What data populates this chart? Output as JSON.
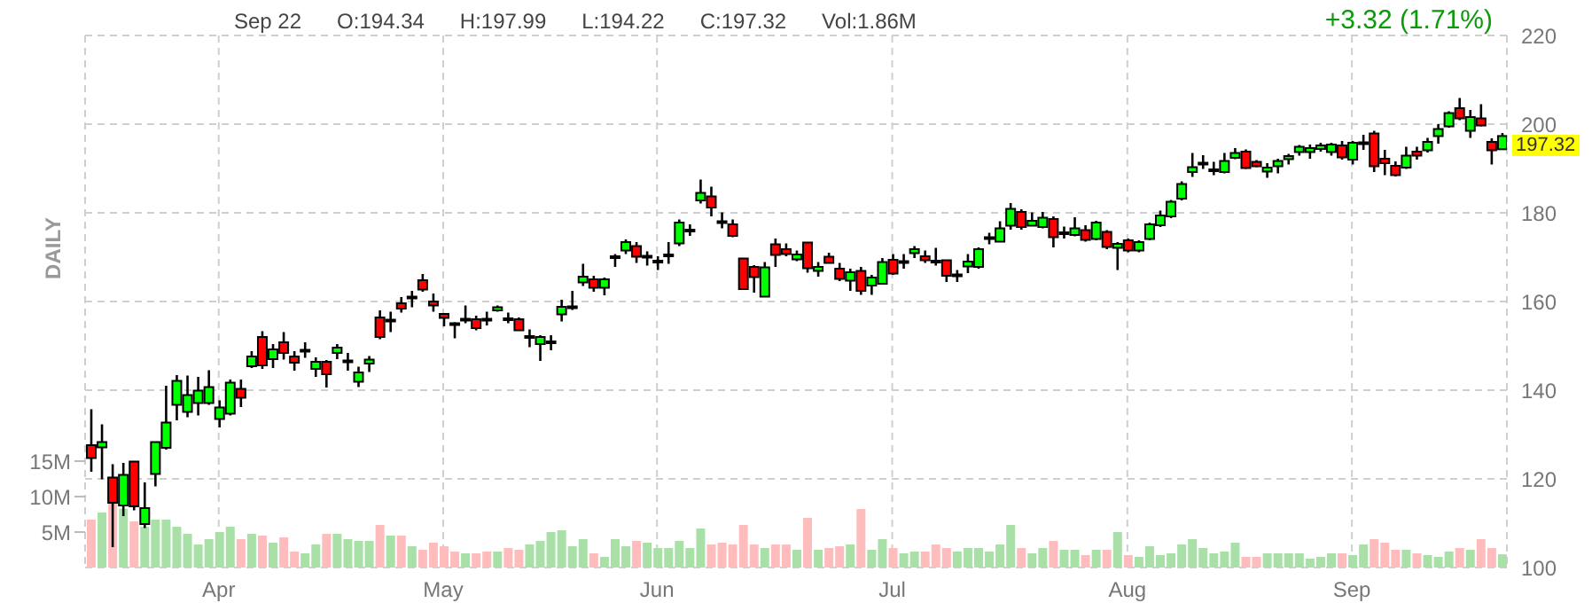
{
  "chart_data": {
    "type": "candlestick",
    "categories": [
      null,
      null,
      null,
      null,
      null,
      null,
      null,
      null,
      null,
      null,
      null,
      null,
      "Apr",
      null,
      null,
      null,
      null,
      null,
      null,
      null,
      null,
      null,
      null,
      null,
      null,
      null,
      null,
      null,
      null,
      null,
      null,
      null,
      null,
      "May",
      null,
      null,
      null,
      null,
      null,
      null,
      null,
      null,
      null,
      null,
      null,
      null,
      null,
      null,
      null,
      null,
      null,
      null,
      null,
      "Jun",
      null,
      null,
      null,
      null,
      null,
      null,
      null,
      null,
      null,
      null,
      null,
      null,
      null,
      null,
      null,
      null,
      null,
      null,
      null,
      null,
      null,
      "Jul",
      null,
      null,
      null,
      null,
      null,
      null,
      null,
      null,
      null,
      null,
      null,
      null,
      null,
      null,
      null,
      null,
      null,
      null,
      null,
      null,
      null,
      "Aug",
      null,
      null,
      null,
      null,
      null,
      null,
      null,
      null,
      null,
      null,
      null,
      null,
      null,
      null,
      null,
      null,
      null,
      null,
      null,
      null,
      "Sep",
      null,
      null,
      null,
      null,
      null,
      null,
      null,
      null,
      null,
      null,
      null,
      null,
      null,
      null
    ],
    "ohlc": [
      [
        127.6,
        135.7,
        121.6,
        124.7
      ],
      [
        127.1,
        132.3,
        119.9,
        128.3
      ],
      [
        120.3,
        123.3,
        104.6,
        114.6
      ],
      [
        114.0,
        123.6,
        111.6,
        120.9
      ],
      [
        123.9,
        124.0,
        112.9,
        113.8
      ],
      [
        109.8,
        119.2,
        108.9,
        113.4
      ],
      [
        121.1,
        128.3,
        118.3,
        128.3
      ],
      [
        127.0,
        141.0,
        126.6,
        132.7
      ],
      [
        136.7,
        143.4,
        133.2,
        142.1
      ],
      [
        135.1,
        143.3,
        133.9,
        138.9
      ],
      [
        137.1,
        143.0,
        134.3,
        139.9
      ],
      [
        137.1,
        144.5,
        136.7,
        140.7
      ],
      [
        133.5,
        137.7,
        131.6,
        136.1
      ],
      [
        134.7,
        142.4,
        134.3,
        141.7
      ],
      [
        140.3,
        142.4,
        136.2,
        138.3
      ],
      [
        145.4,
        148.8,
        145.0,
        147.6
      ],
      [
        152.0,
        153.3,
        144.8,
        145.6
      ],
      [
        147.0,
        150.4,
        145.0,
        149.2
      ],
      [
        150.8,
        153.1,
        146.9,
        148.4
      ],
      [
        147.6,
        148.8,
        144.4,
        146.2
      ],
      [
        149.0,
        150.8,
        147.3,
        149.1
      ],
      [
        144.8,
        147.4,
        143.0,
        146.4
      ],
      [
        146.4,
        146.8,
        140.6,
        143.6
      ],
      [
        148.4,
        150.4,
        147.0,
        149.6
      ],
      [
        146.6,
        148.4,
        144.4,
        146.7
      ],
      [
        141.9,
        145.3,
        140.7,
        144.0
      ],
      [
        146.0,
        147.7,
        144.1,
        146.9
      ],
      [
        156.4,
        158.0,
        151.5,
        152.0
      ],
      [
        155.8,
        157.7,
        153.1,
        155.9
      ],
      [
        159.6,
        161.0,
        157.5,
        158.4
      ],
      [
        161.0,
        162.4,
        158.7,
        161.1
      ],
      [
        164.8,
        166.2,
        162.2,
        162.7
      ],
      [
        160.0,
        161.8,
        157.7,
        159.1
      ],
      [
        157.2,
        157.2,
        154.4,
        156.3
      ],
      [
        155.1,
        155.3,
        151.7,
        155.0
      ],
      [
        156.0,
        159.1,
        155.1,
        156.1
      ],
      [
        156.0,
        156.8,
        153.5,
        154.0
      ],
      [
        156.1,
        157.7,
        154.6,
        156.0
      ],
      [
        158.0,
        159.1,
        157.7,
        158.7
      ],
      [
        156.2,
        157.5,
        155.1,
        156.1
      ],
      [
        156.0,
        156.4,
        153.4,
        153.5
      ],
      [
        152.1,
        153.7,
        149.7,
        152.2
      ],
      [
        150.4,
        152.4,
        146.6,
        152.0
      ],
      [
        150.9,
        152.4,
        149.0,
        151.0
      ],
      [
        157.1,
        160.4,
        155.5,
        158.8
      ],
      [
        158.8,
        162.4,
        158.1,
        158.9
      ],
      [
        164.3,
        168.5,
        163.5,
        165.6
      ],
      [
        165.0,
        165.8,
        162.2,
        163.1
      ],
      [
        163.1,
        165.4,
        161.4,
        165.0
      ],
      [
        170.1,
        170.7,
        167.8,
        170.2
      ],
      [
        171.5,
        174.0,
        170.7,
        173.4
      ],
      [
        172.5,
        173.4,
        168.7,
        170.1
      ],
      [
        170.2,
        171.3,
        168.1,
        170.3
      ],
      [
        169.1,
        170.2,
        167.1,
        169.2
      ],
      [
        170.5,
        173.4,
        168.5,
        170.6
      ],
      [
        173.1,
        178.5,
        172.5,
        177.8
      ],
      [
        176.1,
        177.4,
        174.8,
        176.2
      ],
      [
        182.8,
        187.5,
        182.1,
        184.5
      ],
      [
        183.7,
        185.9,
        179.2,
        181.2
      ],
      [
        178.1,
        180.1,
        176.5,
        178.0
      ],
      [
        177.4,
        178.5,
        174.5,
        174.8
      ],
      [
        169.7,
        169.8,
        162.7,
        162.8
      ],
      [
        167.8,
        168.2,
        162.0,
        165.5
      ],
      [
        161.1,
        168.9,
        161.1,
        167.7
      ],
      [
        172.9,
        174.2,
        167.8,
        170.5
      ],
      [
        171.8,
        173.1,
        170.2,
        170.7
      ],
      [
        169.5,
        171.5,
        169.1,
        170.6
      ],
      [
        173.3,
        173.3,
        166.5,
        167.5
      ],
      [
        166.9,
        168.9,
        165.6,
        167.8
      ],
      [
        170.1,
        171.0,
        168.6,
        168.7
      ],
      [
        167.4,
        168.7,
        164.6,
        165.1
      ],
      [
        164.7,
        167.4,
        162.4,
        166.6
      ],
      [
        166.9,
        167.8,
        161.5,
        162.4
      ],
      [
        163.6,
        166.0,
        161.5,
        165.4
      ],
      [
        164.0,
        169.8,
        163.8,
        168.9
      ],
      [
        169.4,
        170.7,
        166.0,
        166.3
      ],
      [
        169.0,
        170.7,
        167.4,
        169.1
      ],
      [
        170.9,
        172.5,
        169.8,
        171.8
      ],
      [
        170.2,
        171.5,
        168.7,
        169.3
      ],
      [
        169.2,
        172.1,
        168.1,
        169.1
      ],
      [
        169.3,
        169.3,
        164.4,
        165.8
      ],
      [
        166.0,
        167.1,
        164.4,
        166.1
      ],
      [
        167.9,
        170.7,
        166.4,
        169.0
      ],
      [
        167.8,
        172.2,
        167.4,
        171.8
      ],
      [
        174.4,
        175.5,
        172.9,
        174.5
      ],
      [
        173.5,
        178.1,
        173.5,
        176.5
      ],
      [
        177.1,
        182.2,
        176.2,
        180.9
      ],
      [
        180.2,
        180.8,
        176.2,
        176.8
      ],
      [
        177.1,
        180.1,
        177.1,
        178.2
      ],
      [
        176.8,
        180.2,
        176.5,
        178.9
      ],
      [
        178.6,
        179.2,
        172.2,
        174.5
      ],
      [
        175.5,
        176.9,
        174.2,
        175.6
      ],
      [
        175.0,
        179.0,
        174.7,
        176.5
      ],
      [
        176.1,
        177.2,
        173.5,
        173.9
      ],
      [
        174.1,
        178.2,
        173.8,
        177.8
      ],
      [
        175.7,
        176.1,
        171.8,
        172.3
      ],
      [
        172.1,
        173.4,
        167.1,
        173.0
      ],
      [
        173.8,
        174.2,
        171.1,
        171.5
      ],
      [
        171.5,
        173.8,
        171.1,
        173.4
      ],
      [
        174.1,
        177.8,
        173.8,
        177.4
      ],
      [
        177.2,
        180.5,
        176.8,
        179.4
      ],
      [
        179.2,
        182.9,
        178.8,
        182.5
      ],
      [
        183.2,
        187.1,
        182.8,
        186.5
      ],
      [
        189.2,
        193.5,
        188.1,
        190.3
      ],
      [
        191.2,
        193.0,
        189.9,
        191.3
      ],
      [
        189.7,
        191.5,
        188.5,
        189.8
      ],
      [
        189.2,
        193.5,
        188.9,
        191.7
      ],
      [
        192.4,
        194.6,
        192.1,
        193.5
      ],
      [
        193.8,
        194.3,
        189.9,
        190.1
      ],
      [
        191.5,
        191.9,
        190.3,
        190.5
      ],
      [
        189.3,
        191.2,
        187.9,
        190.2
      ],
      [
        190.5,
        192.2,
        188.9,
        191.7
      ],
      [
        192.1,
        193.3,
        190.9,
        192.8
      ],
      [
        193.7,
        195.3,
        192.9,
        194.9
      ],
      [
        193.7,
        195.4,
        192.2,
        194.6
      ],
      [
        194.4,
        195.8,
        193.8,
        195.2
      ],
      [
        193.7,
        195.8,
        192.9,
        195.4
      ],
      [
        195.2,
        196.2,
        192.0,
        192.5
      ],
      [
        192.0,
        196.2,
        190.9,
        195.8
      ],
      [
        195.8,
        197.6,
        194.2,
        195.9
      ],
      [
        197.9,
        198.5,
        189.2,
        190.5
      ],
      [
        192.2,
        194.2,
        188.5,
        191.2
      ],
      [
        190.6,
        191.6,
        188.2,
        188.5
      ],
      [
        190.2,
        194.9,
        189.9,
        192.9
      ],
      [
        193.8,
        194.9,
        192.0,
        192.9
      ],
      [
        194.1,
        196.9,
        193.6,
        196.0
      ],
      [
        197.3,
        200.0,
        195.6,
        198.9
      ],
      [
        199.5,
        202.9,
        199.2,
        202.5
      ],
      [
        203.6,
        205.9,
        200.9,
        201.3
      ],
      [
        198.5,
        203.2,
        196.9,
        201.6
      ],
      [
        201.3,
        204.5,
        199.5,
        199.7
      ],
      [
        196.0,
        196.8,
        190.9,
        194.1
      ],
      [
        194.34,
        197.99,
        194.22,
        197.32
      ]
    ],
    "colors": [
      "#ff0000",
      "#00ff00",
      "#ff0000",
      "#00ff00",
      "#ff0000",
      "#00ff00",
      "#00ff00",
      "#00ff00",
      "#00ff00",
      "#00ff00",
      "#00ff00",
      "#00ff00",
      "#00ff00",
      "#00ff00",
      "#ff0000",
      "#00ff00",
      "#ff0000",
      "#00ff00",
      "#ff0000",
      "#ff0000",
      "#00ff00",
      "#00ff00",
      "#ff0000",
      "#00ff00",
      "#00ff00",
      "#00ff00",
      "#00ff00",
      "#ff0000",
      "#00ff00",
      "#ff0000",
      "#00ff00",
      "#ff0000",
      "#ff0000",
      "#ff0000",
      "#ff0000",
      "#00ff00",
      "#ff0000",
      "#ff0000",
      "#00ff00",
      "#ff0000",
      "#ff0000",
      "#00ff00",
      "#00ff00",
      "#00ff00",
      "#00ff00",
      "#00ff00",
      "#00ff00",
      "#ff0000",
      "#00ff00",
      "#00ff00",
      "#00ff00",
      "#ff0000",
      "#00ff00",
      "#00ff00",
      "#00ff00",
      "#00ff00",
      "#00ff00",
      "#00ff00",
      "#ff0000",
      "#ff0000",
      "#ff0000",
      "#ff0000",
      "#ff0000",
      "#00ff00",
      "#ff0000",
      "#ff0000",
      "#00ff00",
      "#ff0000",
      "#00ff00",
      "#ff0000",
      "#ff0000",
      "#00ff00",
      "#ff0000",
      "#00ff00",
      "#00ff00",
      "#ff0000",
      "#00ff00",
      "#00ff00",
      "#ff0000",
      "#ff0000",
      "#ff0000",
      "#00ff00",
      "#00ff00",
      "#00ff00",
      "#00ff00",
      "#00ff00",
      "#00ff00",
      "#ff0000",
      "#00ff00",
      "#00ff00",
      "#ff0000",
      "#00ff00",
      "#00ff00",
      "#ff0000",
      "#00ff00",
      "#ff0000",
      "#00ff00",
      "#ff0000",
      "#00ff00",
      "#00ff00",
      "#00ff00",
      "#00ff00",
      "#00ff00",
      "#00ff00",
      "#00ff00",
      "#00ff00",
      "#00ff00",
      "#00ff00",
      "#ff0000",
      "#ff0000",
      "#00ff00",
      "#00ff00",
      "#00ff00",
      "#00ff00",
      "#00ff00",
      "#00ff00",
      "#00ff00",
      "#ff0000",
      "#00ff00",
      "#00ff00",
      "#ff0000",
      "#ff0000",
      "#ff0000",
      "#00ff00",
      "#ff0000",
      "#00ff00",
      "#00ff00",
      "#00ff00",
      "#ff0000",
      "#00ff00",
      "#ff0000",
      "#ff0000",
      "#00ff00"
    ],
    "ylim": [
      100,
      220
    ],
    "yticks": [
      100,
      120,
      140,
      160,
      180,
      200,
      220
    ],
    "grid": true,
    "y2lim": [
      0,
      75
    ],
    "y2ticks": [
      {
        "value": 5,
        "label": "5M"
      },
      {
        "value": 10,
        "label": "10M"
      },
      {
        "value": 15,
        "label": "15M"
      }
    ],
    "series": [
      {
        "type": "bar",
        "axis": "y2",
        "values": [
          6.75,
          7.75,
          9.2,
          8.3,
          6.5,
          5.75,
          6.75,
          6.75,
          5.75,
          4.75,
          3.25,
          4.0,
          5.0,
          5.75,
          4.0,
          4.75,
          4.5,
          3.5,
          4.25,
          2.25,
          2.0,
          3.25,
          4.75,
          4.75,
          4.0,
          3.75,
          3.75,
          6.0,
          4.5,
          4.5,
          3.0,
          2.5,
          3.5,
          3.0,
          2.25,
          2.0,
          2.0,
          2.25,
          2.25,
          2.75,
          2.5,
          3.25,
          3.75,
          5.0,
          5.25,
          3.0,
          4.0,
          2.0,
          1.5,
          4.0,
          3.0,
          3.75,
          3.5,
          2.75,
          2.75,
          3.75,
          2.75,
          5.5,
          3.25,
          3.5,
          3.25,
          6.0,
          3.25,
          2.75,
          3.25,
          3.25,
          2.5,
          7.0,
          2.5,
          2.75,
          3.0,
          3.25,
          8.25,
          2.5,
          4.0,
          2.75,
          2.0,
          2.25,
          2.25,
          3.25,
          2.75,
          2.25,
          2.75,
          2.75,
          2.25,
          3.25,
          6.0,
          2.75,
          2.0,
          2.75,
          3.75,
          2.5,
          2.5,
          1.75,
          2.5,
          2.5,
          5.0,
          1.75,
          1.5,
          3.0,
          1.75,
          2.0,
          3.25,
          4.0,
          2.75,
          2.0,
          2.25,
          3.5,
          1.5,
          1.5,
          2.0,
          2.0,
          2.0,
          2.0,
          1.25,
          1.5,
          2.0,
          2.0,
          1.75,
          3.25,
          4.0,
          3.5,
          2.5,
          2.5,
          2.0,
          1.75,
          1.5,
          2.25,
          2.75,
          2.5,
          4.0,
          2.75,
          1.86
        ],
        "colors": [
          "#ffbcbc",
          "#a8e0a8",
          "#ffbcbc",
          "#a8e0a8",
          "#ffbcbc",
          "#a8e0a8",
          "#a8e0a8",
          "#a8e0a8",
          "#a8e0a8",
          "#a8e0a8",
          "#a8e0a8",
          "#a8e0a8",
          "#a8e0a8",
          "#a8e0a8",
          "#ffbcbc",
          "#a8e0a8",
          "#ffbcbc",
          "#a8e0a8",
          "#ffbcbc",
          "#ffbcbc",
          "#a8e0a8",
          "#a8e0a8",
          "#ffbcbc",
          "#a8e0a8",
          "#a8e0a8",
          "#a8e0a8",
          "#a8e0a8",
          "#ffbcbc",
          "#a8e0a8",
          "#ffbcbc",
          "#a8e0a8",
          "#ffbcbc",
          "#ffbcbc",
          "#ffbcbc",
          "#ffbcbc",
          "#a8e0a8",
          "#ffbcbc",
          "#ffbcbc",
          "#a8e0a8",
          "#ffbcbc",
          "#ffbcbc",
          "#a8e0a8",
          "#a8e0a8",
          "#a8e0a8",
          "#a8e0a8",
          "#a8e0a8",
          "#a8e0a8",
          "#ffbcbc",
          "#a8e0a8",
          "#a8e0a8",
          "#a8e0a8",
          "#ffbcbc",
          "#a8e0a8",
          "#a8e0a8",
          "#a8e0a8",
          "#a8e0a8",
          "#a8e0a8",
          "#a8e0a8",
          "#ffbcbc",
          "#ffbcbc",
          "#ffbcbc",
          "#ffbcbc",
          "#ffbcbc",
          "#a8e0a8",
          "#ffbcbc",
          "#ffbcbc",
          "#a8e0a8",
          "#ffbcbc",
          "#a8e0a8",
          "#ffbcbc",
          "#ffbcbc",
          "#a8e0a8",
          "#ffbcbc",
          "#a8e0a8",
          "#a8e0a8",
          "#ffbcbc",
          "#a8e0a8",
          "#a8e0a8",
          "#ffbcbc",
          "#ffbcbc",
          "#ffbcbc",
          "#a8e0a8",
          "#a8e0a8",
          "#a8e0a8",
          "#a8e0a8",
          "#a8e0a8",
          "#a8e0a8",
          "#ffbcbc",
          "#a8e0a8",
          "#a8e0a8",
          "#ffbcbc",
          "#a8e0a8",
          "#a8e0a8",
          "#ffbcbc",
          "#a8e0a8",
          "#ffbcbc",
          "#a8e0a8",
          "#ffbcbc",
          "#a8e0a8",
          "#a8e0a8",
          "#a8e0a8",
          "#a8e0a8",
          "#a8e0a8",
          "#a8e0a8",
          "#a8e0a8",
          "#a8e0a8",
          "#a8e0a8",
          "#a8e0a8",
          "#ffbcbc",
          "#ffbcbc",
          "#a8e0a8",
          "#a8e0a8",
          "#a8e0a8",
          "#a8e0a8",
          "#a8e0a8",
          "#a8e0a8",
          "#a8e0a8",
          "#ffbcbc",
          "#a8e0a8",
          "#a8e0a8",
          "#ffbcbc",
          "#ffbcbc",
          "#ffbcbc",
          "#a8e0a8",
          "#ffbcbc",
          "#a8e0a8",
          "#a8e0a8",
          "#a8e0a8",
          "#ffbcbc",
          "#a8e0a8",
          "#ffbcbc",
          "#ffbcbc",
          "#a8e0a8"
        ]
      }
    ],
    "annotations": [
      "DAILY",
      "Sep 22",
      "O:194.34",
      "H:197.99",
      "L:194.22",
      "C:197.32",
      "Vol:1.86M",
      "+3.32 (1.71%)",
      "197.32"
    ]
  }
}
